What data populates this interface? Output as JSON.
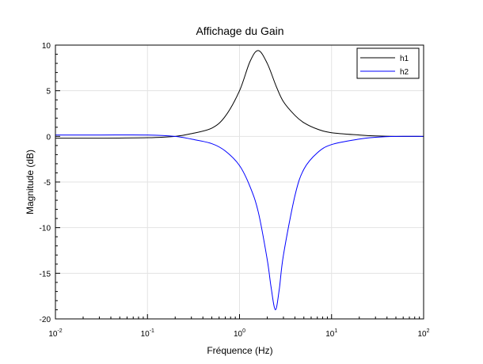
{
  "chart_data": {
    "type": "line",
    "title": "Affichage du Gain",
    "xlabel": "Fréquence (Hz)",
    "ylabel": "Magnitude (dB)",
    "xscale": "log",
    "xlim": [
      0.01,
      100
    ],
    "ylim": [
      -20,
      10
    ],
    "x_ticks": [
      {
        "value": 0.01,
        "base": "10",
        "exp": "-2"
      },
      {
        "value": 0.1,
        "base": "10",
        "exp": "-1"
      },
      {
        "value": 1,
        "base": "10",
        "exp": "0"
      },
      {
        "value": 10,
        "base": "10",
        "exp": "1"
      },
      {
        "value": 100,
        "base": "10",
        "exp": "2"
      }
    ],
    "y_ticks": [
      "10",
      "5",
      "0",
      "-5",
      "-10",
      "-15",
      "-20"
    ],
    "grid": true,
    "legend_position": "top-right",
    "series": [
      {
        "name": "h1",
        "color": "#000000",
        "x": [
          0.01,
          0.03,
          0.1,
          0.2,
          0.3,
          0.5,
          0.7,
          1.0,
          1.3,
          1.6,
          2.0,
          2.5,
          3.0,
          4.0,
          5.0,
          7.0,
          10,
          20,
          30,
          50,
          100
        ],
        "y": [
          -0.2,
          -0.2,
          -0.15,
          0.0,
          0.3,
          0.9,
          2.2,
          5.0,
          8.2,
          9.4,
          8.0,
          5.5,
          3.8,
          2.3,
          1.5,
          0.8,
          0.4,
          0.15,
          0.05,
          0.0,
          0.0
        ]
      },
      {
        "name": "h2",
        "color": "#0000ff",
        "x": [
          0.01,
          0.03,
          0.1,
          0.2,
          0.3,
          0.5,
          0.7,
          1.0,
          1.3,
          1.6,
          2.0,
          2.2,
          2.45,
          2.7,
          3.0,
          4.0,
          5.0,
          7.0,
          10,
          20,
          30,
          50,
          100
        ],
        "y": [
          0.15,
          0.15,
          0.15,
          0.0,
          -0.3,
          -0.8,
          -1.6,
          -3.2,
          -5.5,
          -8.3,
          -13.5,
          -16.5,
          -19.0,
          -16.8,
          -13.0,
          -6.5,
          -3.6,
          -1.8,
          -0.9,
          -0.3,
          -0.1,
          0.0,
          0.0
        ]
      }
    ]
  }
}
